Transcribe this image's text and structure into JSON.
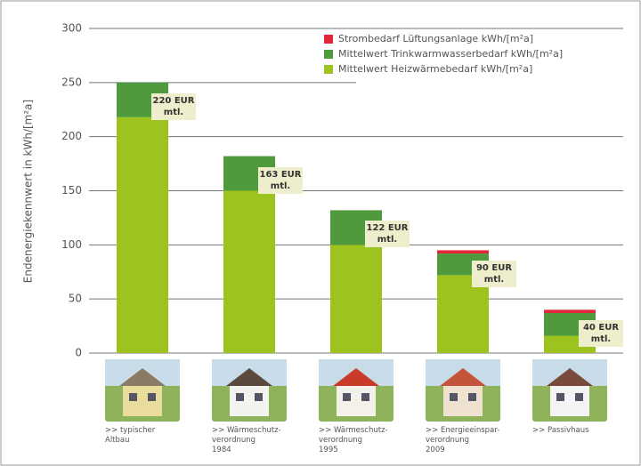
{
  "chart_data": {
    "type": "bar",
    "stacked": true,
    "y_label": "Endenergiekennwert in kWh/[m²a]",
    "categories": [
      ">> typischer\nAltbau",
      ">> Wärmeschutz-\nverordnung\n1984",
      ">> Wärmeschutz-\nverordnung\n1995",
      ">> Energieeinspar-\nverordnung\n2009",
      ">> Passivhaus"
    ],
    "series": [
      {
        "name": "Mittelwert Heizwärmebedarf kWh/[m²a]",
        "color": "#9dc41e",
        "values": [
          218,
          150,
          100,
          72,
          16
        ]
      },
      {
        "name": "Mittelwert Trinkwarmwasserbedarf kWh/[m²a]",
        "color": "#4f9a3c",
        "values": [
          32,
          32,
          32,
          20,
          21
        ]
      },
      {
        "name": "Strombedarf Lüftungsanlage kWh/[m²a]",
        "color": "#e3263a",
        "values": [
          0,
          0,
          0,
          3,
          3
        ]
      }
    ],
    "annotations": [
      "220 EUR\nmtl.",
      "163 EUR\nmtl.",
      "122 EUR\nmtl.",
      "90 EUR\nmtl.",
      "40 EUR\nmtl."
    ],
    "ylim": [
      0,
      300
    ],
    "yticks": [
      0,
      50,
      100,
      150,
      200,
      250,
      300
    ],
    "grid": true
  }
}
